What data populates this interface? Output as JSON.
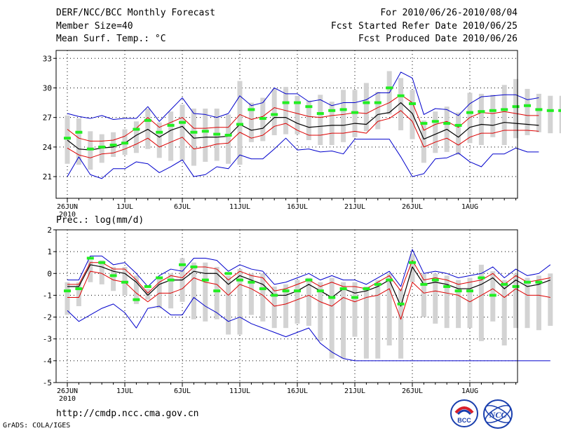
{
  "header": {
    "title": "DERF/NCC/BCC Monthly Forecast",
    "member_size": "Member Size=40",
    "variable": "Mean Surf. Temp.: °C",
    "period": "For 2010/06/26-2010/08/04",
    "started": "Fcst Started Refer Date 2010/06/25",
    "produced": "Fcst Produced Date 2010/06/26"
  },
  "footer": {
    "url": "http://cmdp.ncc.cma.gov.cn",
    "grads": "GrADS: COLA/IGES",
    "logo_bcc": "BCC",
    "logo_ncc": "NCC"
  },
  "chart_data": [
    {
      "type": "line",
      "title": "Mean Surf. Temp.: °C",
      "xlabel": "",
      "ylabel": "",
      "ylim": [
        18.8,
        33.8
      ],
      "yticks": [
        "21",
        "24",
        "27",
        "30",
        "33"
      ],
      "xticks": [
        {
          "day": 1,
          "label": "26JUN",
          "sub": "2010"
        },
        {
          "day": 6,
          "label": "1JUL",
          "sub": ""
        },
        {
          "day": 11,
          "label": "6JUL",
          "sub": ""
        },
        {
          "day": 16,
          "label": "11JUL",
          "sub": ""
        },
        {
          "day": 21,
          "label": "16JUL",
          "sub": ""
        },
        {
          "day": 26,
          "label": "21JUL",
          "sub": ""
        },
        {
          "day": 31,
          "label": "26JUL",
          "sub": ""
        },
        {
          "day": 36,
          "label": "1AUG",
          "sub": ""
        }
      ],
      "days": 40,
      "grid": true,
      "colors": {
        "mean": "#000000",
        "spread": "#dd0000",
        "extreme": "#0000cc",
        "box": "#d3d3d3",
        "obs": "#22ee22"
      },
      "series": [
        {
          "name": "ensemble max",
          "values": [
            27.4,
            27.1,
            26.9,
            27.2,
            26.8,
            26.9,
            26.9,
            28.1,
            26.6,
            27.8,
            29.0,
            27.4,
            27.3,
            27.0,
            27.4,
            29.2,
            28.2,
            28.5,
            30.0,
            29.4,
            29.4,
            28.6,
            28.8,
            28.2,
            28.5,
            28.5,
            28.8,
            29.5,
            29.5,
            31.6,
            31.0,
            27.3,
            27.9,
            27.8,
            27.2,
            28.4,
            29.1,
            29.2,
            29.3,
            29.3,
            28.8,
            29.0
          ]
        },
        {
          "name": "mean + spread",
          "values": [
            25.8,
            24.9,
            24.6,
            24.6,
            24.7,
            25.1,
            25.9,
            27.0,
            26.0,
            26.5,
            27.0,
            25.9,
            25.9,
            26.0,
            26.0,
            27.3,
            26.8,
            27.1,
            28.0,
            27.7,
            27.4,
            27.1,
            27.0,
            27.2,
            27.3,
            27.5,
            27.4,
            28.0,
            28.5,
            29.3,
            28.5,
            25.7,
            26.3,
            26.6,
            26.0,
            27.0,
            27.5,
            27.4,
            27.6,
            27.4,
            27.2,
            27.2
          ]
        },
        {
          "name": "ensemble mean",
          "values": [
            24.7,
            23.8,
            23.7,
            23.9,
            24.0,
            24.4,
            25.2,
            25.8,
            25.0,
            25.7,
            26.1,
            24.9,
            25.0,
            25.0,
            25.1,
            26.3,
            25.7,
            25.9,
            27.0,
            27.0,
            26.4,
            26.0,
            26.1,
            26.2,
            26.2,
            26.4,
            26.3,
            27.3,
            27.5,
            28.5,
            27.4,
            24.8,
            25.3,
            25.8,
            25.0,
            26.0,
            26.3,
            26.2,
            26.5,
            26.4,
            26.3,
            26.2
          ]
        },
        {
          "name": "mean - spread",
          "values": [
            23.9,
            23.2,
            22.9,
            23.3,
            23.4,
            23.8,
            24.3,
            24.9,
            24.0,
            24.5,
            25.0,
            23.8,
            24.0,
            24.3,
            24.4,
            25.5,
            24.9,
            25.2,
            26.1,
            26.4,
            25.7,
            25.2,
            25.2,
            25.4,
            25.4,
            25.6,
            25.4,
            26.6,
            26.9,
            27.7,
            26.6,
            24.0,
            24.5,
            24.9,
            24.2,
            25.0,
            25.4,
            25.4,
            25.7,
            25.7,
            25.7,
            25.6
          ]
        },
        {
          "name": "ensemble min",
          "values": [
            21.0,
            23.0,
            21.2,
            20.8,
            21.8,
            21.8,
            22.5,
            22.3,
            21.4,
            22.0,
            22.7,
            21.0,
            21.2,
            22.0,
            21.8,
            23.2,
            22.8,
            22.8,
            23.8,
            24.9,
            23.7,
            23.8,
            23.5,
            23.6,
            23.3,
            24.8,
            24.8,
            24.8,
            24.8,
            23.0,
            21.0,
            21.3,
            22.8,
            22.9,
            23.4,
            22.5,
            22.0,
            23.3,
            23.3,
            23.9,
            23.5,
            23.5
          ]
        },
        {
          "name": "observed",
          "values": [
            24.9,
            25.5,
            23.8,
            24.0,
            24.2,
            24.4,
            25.8,
            26.7,
            25.5,
            26.2,
            26.5,
            25.5,
            25.6,
            25.3,
            25.2,
            26.3,
            27.8,
            26.9,
            27.3,
            28.5,
            28.5,
            28.1,
            27.4,
            27.7,
            27.8,
            27.5,
            28.5,
            28.5,
            30.0,
            29.2,
            28.4,
            26.4,
            26.6,
            26.4,
            26.2,
            27.5,
            27.6,
            27.7,
            27.8,
            28.1,
            28.2,
            27.8,
            27.7,
            27.7
          ]
        },
        {
          "name": "box upper",
          "values": [
            27.2,
            26.9,
            25.6,
            25.3,
            25.5,
            25.8,
            26.6,
            27.9,
            26.5,
            27.6,
            28.3,
            27.9,
            27.9,
            27.9,
            27.3,
            30.7,
            28.5,
            29.0,
            29.9,
            30.1,
            29.2,
            28.7,
            29.3,
            28.6,
            29.8,
            29.8,
            30.5,
            29.6,
            31.7,
            31.0,
            29.8,
            26.7,
            27.6,
            28.1,
            27.5,
            29.5,
            29.4,
            29.3,
            30.3,
            30.9,
            29.9,
            29.4,
            29.2,
            29.2
          ]
        },
        {
          "name": "box lower",
          "values": [
            22.3,
            22.2,
            21.7,
            22.4,
            23.0,
            23.2,
            23.4,
            23.8,
            22.9,
            22.6,
            22.6,
            22.1,
            22.5,
            22.6,
            22.3,
            22.2,
            24.5,
            24.6,
            25.2,
            25.3,
            25.3,
            24.7,
            24.2,
            24.2,
            24.5,
            25.0,
            25.6,
            25.8,
            27.3,
            25.7,
            24.8,
            22.4,
            23.4,
            23.5,
            23.2,
            24.4,
            24.2,
            25.0,
            24.2,
            24.9,
            25.2,
            25.5,
            25.4,
            25.4
          ]
        }
      ]
    },
    {
      "type": "line",
      "title": "Prec.: log(mm/d)",
      "xlabel": "",
      "ylabel": "",
      "ylim": [
        -5,
        2
      ],
      "yticks": [
        "-5",
        "-4",
        "-3",
        "-2",
        "-1",
        "0",
        "1",
        "2"
      ],
      "xticks": [
        {
          "day": 1,
          "label": "26JUN",
          "sub": "2010"
        },
        {
          "day": 6,
          "label": "1JUL",
          "sub": ""
        },
        {
          "day": 11,
          "label": "6JUL",
          "sub": ""
        },
        {
          "day": 16,
          "label": "11JUL",
          "sub": ""
        },
        {
          "day": 21,
          "label": "16JUL",
          "sub": ""
        },
        {
          "day": 26,
          "label": "21JUL",
          "sub": ""
        },
        {
          "day": 31,
          "label": "26JUL",
          "sub": ""
        },
        {
          "day": 36,
          "label": "1AUG",
          "sub": ""
        }
      ],
      "days": 40,
      "grid": true,
      "colors": {
        "mean": "#000000",
        "spread": "#dd0000",
        "extreme": "#0000cc",
        "box": "#d3d3d3",
        "obs": "#22ee22"
      },
      "series": [
        {
          "name": "ensemble max",
          "values": [
            -0.3,
            -0.3,
            0.8,
            0.8,
            0.4,
            0.5,
            0.0,
            -0.6,
            -0.1,
            0.2,
            0.1,
            0.7,
            0.7,
            0.6,
            0.1,
            0.4,
            0.2,
            0.1,
            -0.5,
            -0.4,
            -0.2,
            0.0,
            -0.3,
            -0.1,
            -0.3,
            -0.3,
            -0.5,
            -0.2,
            0.1,
            -0.6,
            1.1,
            0.0,
            0.1,
            0.0,
            -0.2,
            -0.1,
            0.0,
            0.3,
            -0.2,
            0.2,
            -0.1,
            0.0,
            0.4
          ]
        },
        {
          "name": "mean + spread",
          "values": [
            -0.5,
            -0.5,
            0.5,
            0.5,
            0.2,
            0.2,
            -0.3,
            -0.9,
            -0.4,
            -0.1,
            -0.2,
            0.3,
            0.3,
            0.2,
            -0.3,
            0.1,
            -0.1,
            -0.2,
            -0.8,
            -0.7,
            -0.5,
            -0.3,
            -0.6,
            -0.4,
            -0.6,
            -0.6,
            -0.7,
            -0.4,
            -0.1,
            -0.8,
            0.6,
            -0.3,
            -0.2,
            -0.3,
            -0.5,
            -0.4,
            -0.3,
            0.0,
            -0.5,
            -0.1,
            -0.4,
            -0.3,
            -0.2
          ]
        },
        {
          "name": "ensemble mean",
          "values": [
            -0.6,
            -0.6,
            0.4,
            0.3,
            0.1,
            0.0,
            -0.4,
            -1.0,
            -0.5,
            -0.3,
            -0.3,
            0.1,
            0.0,
            0.0,
            -0.5,
            -0.1,
            -0.3,
            -0.5,
            -1.0,
            -1.0,
            -0.8,
            -0.5,
            -0.8,
            -1.1,
            -0.7,
            -0.9,
            -0.8,
            -0.6,
            -0.3,
            -1.5,
            0.3,
            -0.5,
            -0.4,
            -0.5,
            -0.7,
            -0.7,
            -0.5,
            -0.2,
            -0.7,
            -0.3,
            -0.6,
            -0.5,
            -0.3
          ]
        },
        {
          "name": "mean - spread",
          "values": [
            -1.1,
            -1.1,
            0.1,
            0.0,
            -0.3,
            -0.4,
            -0.9,
            -1.3,
            -0.9,
            -0.9,
            -0.7,
            -0.2,
            -0.4,
            -0.5,
            -1.0,
            -0.5,
            -0.7,
            -1.0,
            -1.5,
            -1.4,
            -1.2,
            -1.0,
            -1.3,
            -1.5,
            -1.1,
            -1.3,
            -1.1,
            -1.0,
            -0.7,
            -2.1,
            -0.4,
            -0.9,
            -0.8,
            -0.9,
            -1.0,
            -1.3,
            -1.0,
            -0.7,
            -1.1,
            -0.7,
            -1.0,
            -1.0,
            -1.1
          ]
        },
        {
          "name": "ensemble min",
          "values": [
            -1.7,
            -2.2,
            -1.9,
            -1.6,
            -1.4,
            -1.8,
            -2.5,
            -1.6,
            -1.5,
            -1.9,
            -1.9,
            -1.1,
            -1.5,
            -1.8,
            -2.2,
            -2.0,
            -2.3,
            -2.5,
            -2.7,
            -2.9,
            -2.7,
            -2.5,
            -3.2,
            -3.6,
            -3.9,
            -4.0,
            -4.0,
            -4.0,
            -4.0,
            -4.0,
            -4.0,
            -4.0,
            -4.0,
            -4.0,
            -4.0,
            -4.0,
            -4.0,
            -4.0,
            -4.0,
            -4.0,
            -4.0,
            -4.0,
            -4.0
          ]
        },
        {
          "name": "observed",
          "values": [
            -0.8,
            -0.7,
            0.7,
            0.5,
            -0.1,
            -0.4,
            -1.2,
            -0.6,
            -0.2,
            -0.3,
            0.4,
            0.3,
            -0.3,
            -0.8,
            0.0,
            -0.3,
            -0.4,
            -0.7,
            -1.0,
            -0.8,
            -0.8,
            -0.3,
            -0.8,
            -1.1,
            -0.7,
            -1.1,
            -0.7,
            -0.5,
            -0.3,
            -1.4,
            0.5,
            -0.5,
            -0.3,
            -0.6,
            -0.8,
            -0.8,
            -0.2,
            -1.0,
            -0.5,
            -0.6,
            -0.4,
            -0.4
          ]
        },
        {
          "name": "box upper",
          "values": [
            -0.4,
            -0.4,
            0.6,
            0.6,
            0.3,
            0.3,
            -0.1,
            -0.7,
            -0.2,
            0.0,
            0.7,
            0.5,
            0.5,
            0.3,
            -0.1,
            0.2,
            0.0,
            0.0,
            -0.6,
            -0.5,
            -0.3,
            -0.2,
            -0.4,
            -0.2,
            -0.4,
            -0.4,
            -0.6,
            -0.3,
            0.0,
            -0.7,
            0.9,
            0.0,
            0.0,
            -0.1,
            -0.3,
            -0.2,
            0.4,
            0.1,
            -0.3,
            0.0,
            -0.2,
            -0.1,
            0.0
          ]
        },
        {
          "name": "box lower",
          "values": [
            -1.9,
            -1.5,
            -0.4,
            -0.5,
            -0.8,
            -1.0,
            -1.4,
            -1.2,
            -1.6,
            -1.6,
            -1.3,
            -2.1,
            -2.2,
            -2.1,
            -2.8,
            -2.8,
            -1.9,
            -2.2,
            -2.5,
            -2.5,
            -2.3,
            -2.4,
            -3.1,
            -3.9,
            -3.9,
            -2.9,
            -3.9,
            -3.9,
            -3.3,
            -3.9,
            -0.4,
            -2.0,
            -2.3,
            -2.5,
            -2.5,
            -2.5,
            -3.1,
            -2.2,
            -3.3,
            -2.5,
            -2.5,
            -2.6,
            -2.4
          ]
        }
      ]
    }
  ]
}
